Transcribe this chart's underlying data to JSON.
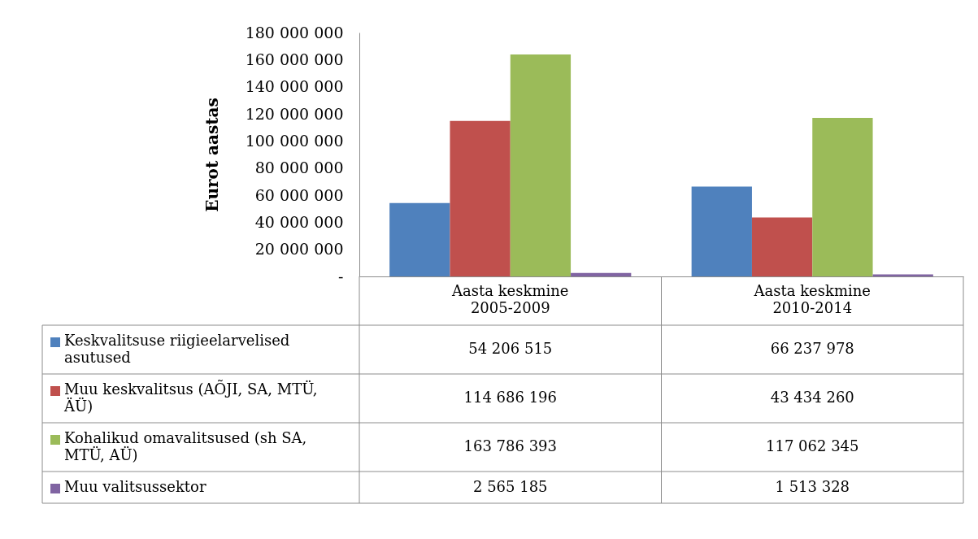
{
  "chart_data": {
    "type": "bar",
    "ylabel": "Eurot aastas",
    "categories": [
      "Aasta keskmine 2005-2009",
      "Aasta keskmine 2010-2014"
    ],
    "series": [
      {
        "name": "Keskvalitsuse riigieelarvelised asutused",
        "color": "#4f81bd",
        "values": [
          54206515,
          66237978
        ],
        "value_labels": [
          "54 206 515",
          "66 237 978"
        ]
      },
      {
        "name": "Muu keskvalitsus (AÕJI, SA, MTÜ, ÄÜ)",
        "color": "#c0504d",
        "values": [
          114686196,
          43434260
        ],
        "value_labels": [
          "114 686 196",
          "43 434 260"
        ]
      },
      {
        "name": "Kohalikud omavalitsused (sh SA, MTÜ, AÜ)",
        "color": "#9bbb59",
        "values": [
          163786393,
          117062345
        ],
        "value_labels": [
          "163 786 393",
          "117 062 345"
        ]
      },
      {
        "name": "Muu valitsussektor",
        "color": "#8064a2",
        "values": [
          2565185,
          1513328
        ],
        "value_labels": [
          "2 565 185",
          "1 513 328"
        ]
      }
    ],
    "ylim": [
      0,
      180000000
    ],
    "yticks": [
      {
        "value": 0,
        "label": "-"
      },
      {
        "value": 20000000,
        "label": "20 000 000"
      },
      {
        "value": 40000000,
        "label": "40 000 000"
      },
      {
        "value": 60000000,
        "label": "60 000 000"
      },
      {
        "value": 80000000,
        "label": "80 000 000"
      },
      {
        "value": 100000000,
        "label": "100 000 000"
      },
      {
        "value": 120000000,
        "label": "120 000 000"
      },
      {
        "value": 140000000,
        "label": "140 000 000"
      },
      {
        "value": 160000000,
        "label": "160 000 000"
      },
      {
        "value": 180000000,
        "label": "180 000 000"
      }
    ],
    "grid": false,
    "legend": "bottom left"
  }
}
